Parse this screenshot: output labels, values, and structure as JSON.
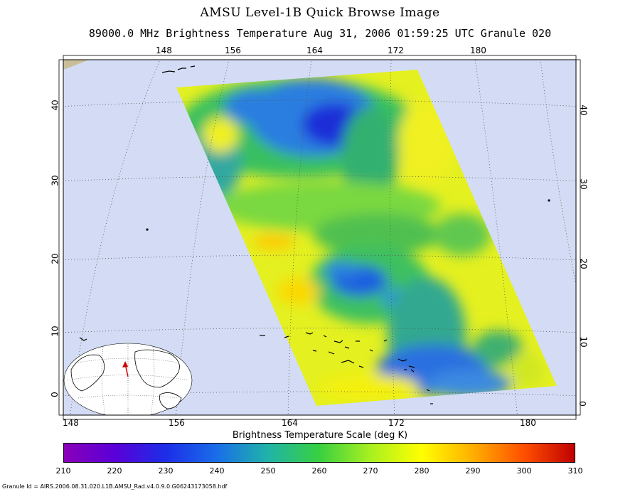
{
  "title": "AMSU Level-1B Quick Browse Image",
  "subtitle": "89000.0 MHz Brightness Temperature   Aug 31, 2006 01:59:25 UTC  Granule 020",
  "map": {
    "top_lon_labels": [
      "148",
      "156",
      "164",
      "172",
      "180"
    ],
    "bottom_lon_labels": [
      "148",
      "156",
      "164",
      "172",
      "180"
    ],
    "left_lat_labels": [
      "0",
      "10",
      "20",
      "30",
      "40"
    ],
    "right_lat_labels": [
      "0",
      "10",
      "20",
      "30",
      "40"
    ],
    "colors": {
      "ocean": "#d3dcf4",
      "land": "#c8be98",
      "grid": "#555555"
    }
  },
  "scale": {
    "title": "Brightness Temperature Scale (deg K)",
    "ticks": [
      "210",
      "220",
      "230",
      "240",
      "250",
      "260",
      "270",
      "280",
      "290",
      "300",
      "310"
    ],
    "colors": [
      "#8a00b8",
      "#5a00d8",
      "#1c2ee8",
      "#1a6ee8",
      "#20b4a8",
      "#38d040",
      "#a8f020",
      "#ffff00",
      "#ffb000",
      "#ff5000",
      "#c00000"
    ]
  },
  "granule_id": "Granule Id = AIRS.2006.08.31.020.L1B.AMSU_Rad.v4.0.9.0.G06243173058.hdf"
}
